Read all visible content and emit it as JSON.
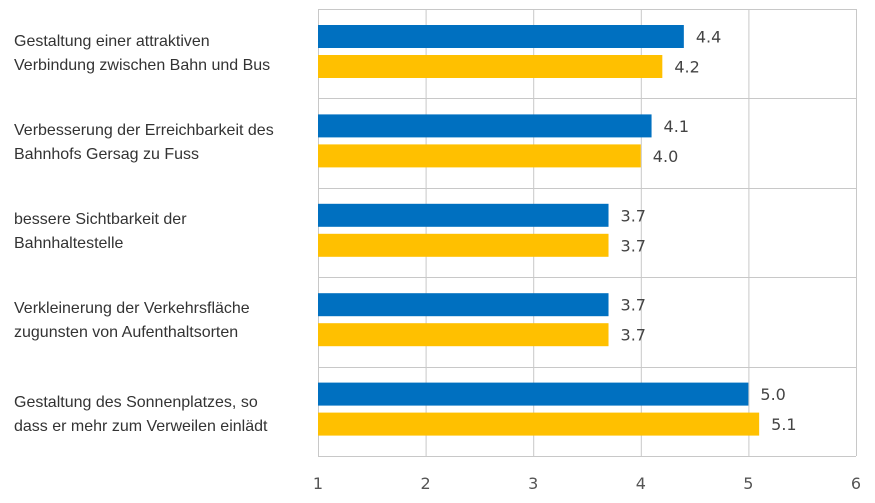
{
  "chart_data": {
    "type": "bar",
    "orientation": "horizontal",
    "categories": [
      "Gestaltung einer attraktiven Verbindung zwischen Bahn und Bus",
      "Verbesserung der Erreichbarkeit des Bahnhofs Gersag zu Fuss",
      "bessere Sichtbarkeit der Bahnhaltestelle",
      "Verkleinerung der Verkehrsfläche zugunsten von Aufenthaltsorten",
      "Gestaltung des Sonnenplatzes, so dass er mehr zum Verweilen einlädt"
    ],
    "category_lines": [
      [
        "Gestaltung einer attraktiven",
        "Verbindung zwischen Bahn und Bus"
      ],
      [
        "Verbesserung der Erreichbarkeit des",
        "Bahnhofs Gersag zu Fuss"
      ],
      [
        "bessere Sichtbarkeit der",
        "Bahnhaltestelle"
      ],
      [
        "Verkleinerung der Verkehrsfläche",
        "zugunsten von Aufenthaltsorten"
      ],
      [
        "Gestaltung des Sonnenplatzes, so",
        "dass er mehr zum Verweilen einlädt"
      ]
    ],
    "series": [
      {
        "color": "#0070C0",
        "values": [
          4.4,
          4.1,
          3.7,
          3.7,
          5.0
        ],
        "labels": [
          "4.4",
          "4.1",
          "3.7",
          "3.7",
          "5.0"
        ]
      },
      {
        "color": "#FFC000",
        "values": [
          4.2,
          4.0,
          3.7,
          3.7,
          5.1
        ],
        "labels": [
          "4.2",
          "4.0",
          "3.7",
          "3.7",
          "5.1"
        ]
      }
    ],
    "xlim": [
      1,
      6
    ],
    "xticks": [
      "1",
      "2",
      "3",
      "4",
      "5",
      "6"
    ],
    "grid": true,
    "legend": "none",
    "title": "",
    "xlabel": "",
    "ylabel": ""
  }
}
